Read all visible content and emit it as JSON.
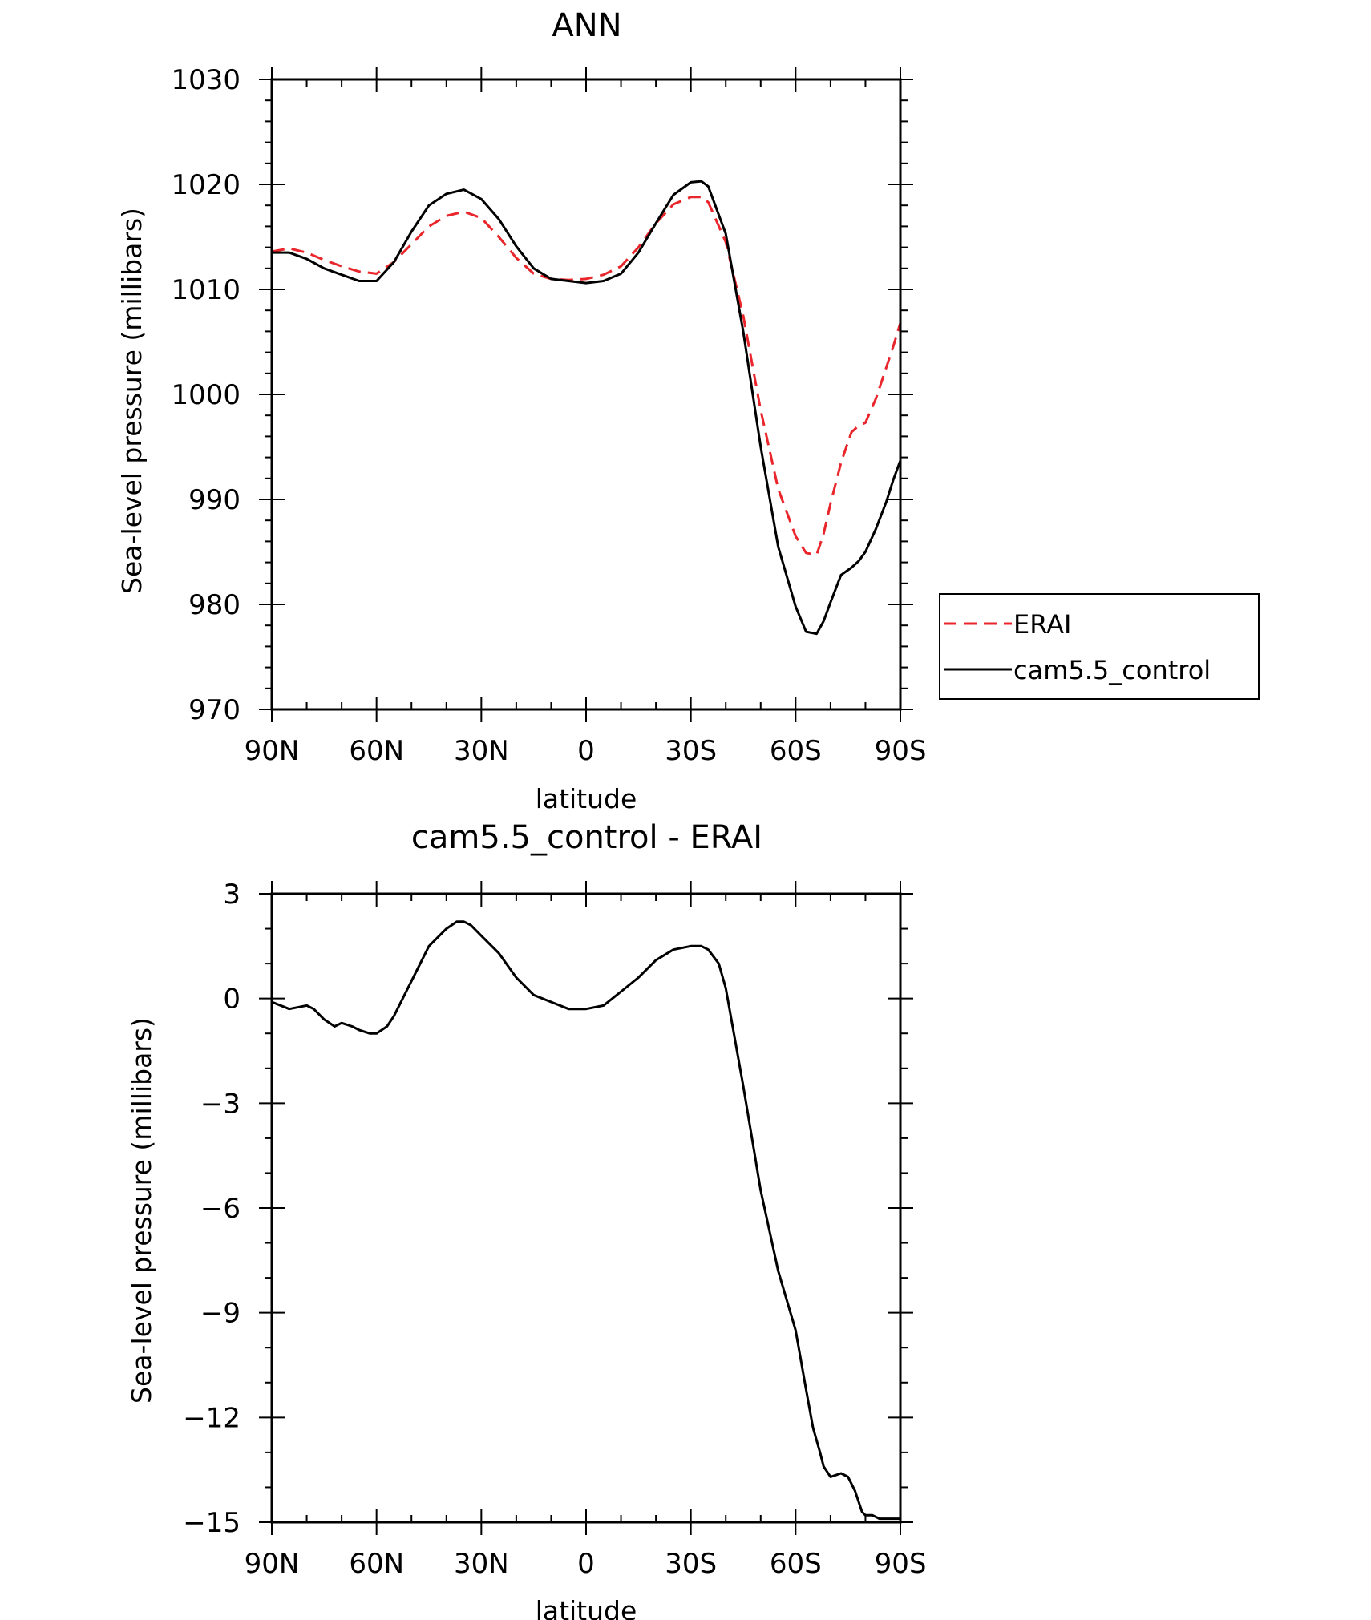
{
  "chart_data": [
    {
      "type": "line",
      "title": "ANN",
      "xlabel": "latitude",
      "ylabel": "Sea-level pressure (millibars)",
      "x_ticks": [
        "90N",
        "60N",
        "30N",
        "0",
        "30S",
        "60S",
        "90S"
      ],
      "x_tick_values": [
        90,
        60,
        30,
        0,
        -30,
        -60,
        -90
      ],
      "ylim": [
        970,
        1030
      ],
      "y_ticks": [
        "970",
        "980",
        "990",
        "1000",
        "1010",
        "1020",
        "1030"
      ],
      "y_tick_values": [
        970,
        980,
        990,
        1000,
        1010,
        1020,
        1030
      ],
      "legend": {
        "placement": "outside-right"
      },
      "series": [
        {
          "name": "ERAI",
          "color": "#e8262b",
          "dash": "dashed",
          "x": [
            90,
            85,
            80,
            75,
            70,
            65,
            60,
            55,
            50,
            45,
            40,
            35,
            30,
            25,
            20,
            15,
            10,
            5,
            0,
            -5,
            -10,
            -15,
            -20,
            -25,
            -30,
            -33,
            -35,
            -40,
            -45,
            -50,
            -55,
            -60,
            -63,
            -66,
            -68,
            -70,
            -73,
            -76,
            -78,
            -80,
            -83,
            -86,
            -88,
            -90
          ],
          "y": [
            1013.6,
            1013.9,
            1013.5,
            1012.8,
            1012.2,
            1011.7,
            1011.5,
            1012.6,
            1014.3,
            1016.0,
            1017.0,
            1017.4,
            1016.8,
            1015.0,
            1013.0,
            1011.5,
            1011.0,
            1010.9,
            1011.0,
            1011.4,
            1012.2,
            1014.0,
            1016.3,
            1018.1,
            1018.8,
            1018.8,
            1018.3,
            1014.5,
            1007.5,
            998.5,
            991.0,
            986.5,
            984.9,
            984.7,
            986.7,
            989.6,
            993.5,
            996.4,
            997.0,
            997.3,
            999.6,
            1002.6,
            1004.6,
            1006.8
          ]
        },
        {
          "name": "cam5.5_control",
          "color": "#000000",
          "dash": "solid",
          "x": [
            90,
            85,
            80,
            75,
            70,
            65,
            60,
            55,
            50,
            45,
            40,
            35,
            30,
            25,
            20,
            15,
            10,
            5,
            0,
            -5,
            -10,
            -15,
            -20,
            -25,
            -30,
            -33,
            -35,
            -40,
            -45,
            -50,
            -55,
            -60,
            -63,
            -66,
            -68,
            -70,
            -73,
            -76,
            -78,
            -80,
            -83,
            -86,
            -88,
            -90
          ],
          "y": [
            1013.5,
            1013.5,
            1012.9,
            1012.0,
            1011.4,
            1010.8,
            1010.8,
            1012.6,
            1015.5,
            1018.0,
            1019.1,
            1019.5,
            1018.6,
            1016.7,
            1014.1,
            1012.0,
            1011.0,
            1010.8,
            1010.6,
            1010.8,
            1011.5,
            1013.5,
            1016.3,
            1019.0,
            1020.2,
            1020.3,
            1019.8,
            1015.3,
            1006.0,
            995.0,
            985.5,
            979.8,
            977.4,
            977.2,
            978.4,
            980.2,
            982.8,
            983.5,
            984.1,
            985.0,
            987.2,
            989.8,
            991.9,
            993.7
          ]
        }
      ]
    },
    {
      "type": "line",
      "title": "cam5.5_control - ERAI",
      "xlabel": "latitude",
      "ylabel": "Sea-level pressure (millibars)",
      "x_ticks": [
        "90N",
        "60N",
        "30N",
        "0",
        "30S",
        "60S",
        "90S"
      ],
      "x_tick_values": [
        90,
        60,
        30,
        0,
        -30,
        -60,
        -90
      ],
      "ylim": [
        -15,
        3
      ],
      "y_ticks": [
        "-15",
        "-12",
        "-9",
        "-6",
        "-3",
        "0",
        "3"
      ],
      "y_tick_values": [
        -15,
        -12,
        -9,
        -6,
        -3,
        0,
        3
      ],
      "series": [
        {
          "color": "#000000",
          "dash": "solid",
          "x": [
            90,
            85,
            80,
            78,
            75,
            72,
            70,
            67,
            65,
            62,
            60,
            57,
            55,
            50,
            45,
            40,
            37,
            35,
            33,
            30,
            25,
            20,
            15,
            10,
            5,
            0,
            -5,
            -10,
            -15,
            -20,
            -25,
            -30,
            -33,
            -35,
            -38,
            -40,
            -45,
            -50,
            -55,
            -60,
            -63,
            -65,
            -67,
            -68,
            -70,
            -73,
            -75,
            -77,
            -79,
            -80,
            -82,
            -84,
            -86,
            -87,
            -88,
            -89,
            -90
          ],
          "y": [
            -0.1,
            -0.3,
            -0.2,
            -0.3,
            -0.6,
            -0.8,
            -0.7,
            -0.8,
            -0.9,
            -1.0,
            -1.0,
            -0.8,
            -0.5,
            0.5,
            1.5,
            2.0,
            2.2,
            2.2,
            2.1,
            1.8,
            1.3,
            0.6,
            0.1,
            -0.1,
            -0.3,
            -0.3,
            -0.2,
            0.2,
            0.6,
            1.1,
            1.4,
            1.5,
            1.5,
            1.4,
            1.0,
            0.3,
            -2.5,
            -5.5,
            -7.8,
            -9.5,
            -11.2,
            -12.3,
            -13.0,
            -13.4,
            -13.7,
            -13.6,
            -13.7,
            -14.1,
            -14.7,
            -14.8,
            -14.8,
            -14.9,
            -14.9,
            -14.9,
            -14.9,
            -14.9,
            -14.9
          ]
        }
      ]
    }
  ]
}
